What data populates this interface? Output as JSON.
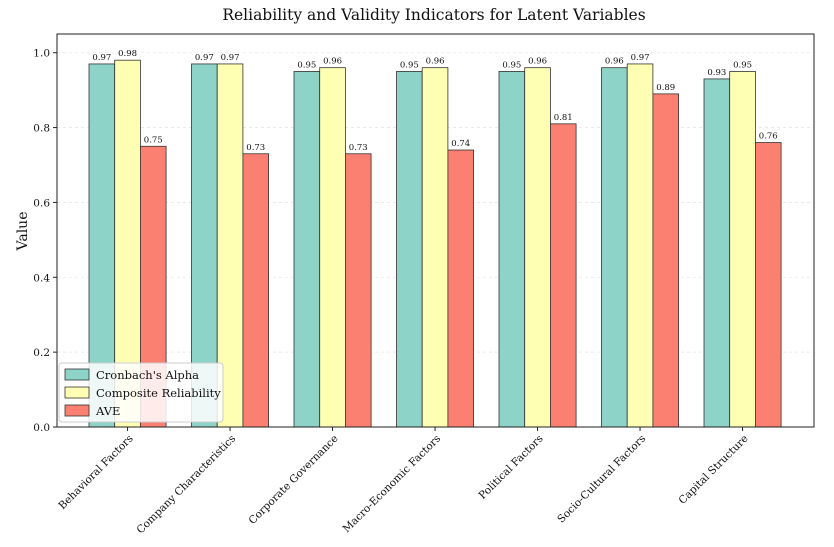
{
  "chart_data": {
    "type": "bar",
    "title": "Reliability and Validity Indicators for Latent Variables",
    "xlabel": "",
    "ylabel": "Value",
    "ylim": [
      0,
      1.05
    ],
    "yticks": [
      "0.0",
      "0.2",
      "0.4",
      "0.6",
      "0.8",
      "1.0"
    ],
    "grid": "horizontal dashed",
    "legend_position": "lower-left",
    "categories": [
      "Behavioral Factors",
      "Company Characteristics",
      "Corporate Governance",
      "Macro-Economic Factors",
      "Political Factors",
      "Socio-Cultural Factors",
      "Capital Structure"
    ],
    "series": [
      {
        "name": "Cronbach's Alpha",
        "color": "#8dd3c7",
        "values": [
          0.97,
          0.97,
          0.95,
          0.95,
          0.95,
          0.96,
          0.93
        ],
        "labels": [
          "0.97",
          "0.97",
          "0.95",
          "0.95",
          "0.95",
          "0.96",
          "0.93"
        ]
      },
      {
        "name": "Composite Reliability",
        "color": "#ffffb3",
        "values": [
          0.98,
          0.97,
          0.96,
          0.96,
          0.96,
          0.97,
          0.95
        ],
        "labels": [
          "0.98",
          "0.97",
          "0.96",
          "0.96",
          "0.96",
          "0.97",
          "0.95"
        ]
      },
      {
        "name": "AVE",
        "color": "#fb8072",
        "values": [
          0.75,
          0.73,
          0.73,
          0.74,
          0.81,
          0.89,
          0.76
        ],
        "labels": [
          "0.75",
          "0.73",
          "0.73",
          "0.74",
          "0.81",
          "0.89",
          "0.76"
        ]
      }
    ]
  }
}
